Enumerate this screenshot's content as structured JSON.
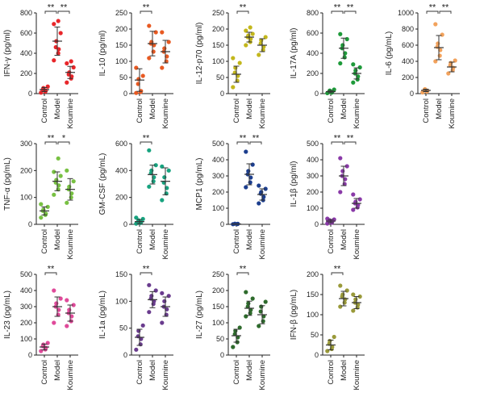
{
  "groups": [
    "Control",
    "Model",
    "Koumine"
  ],
  "colors_meta": {
    "note_free": true
  },
  "chart_data": [
    {
      "type": "scatter",
      "ylabel": "IFN-γ (pg/ml)",
      "ylim": [
        0,
        800
      ],
      "yticks": [
        0,
        200,
        400,
        600,
        800
      ],
      "color": "#e8262a",
      "series": [
        {
          "values": [
            10,
            20,
            30,
            40,
            55,
            70
          ],
          "mean": 40,
          "sd": 20
        },
        {
          "values": [
            330,
            400,
            440,
            460,
            520,
            600,
            690,
            720
          ],
          "mean": 520,
          "sd": 140
        },
        {
          "values": [
            110,
            150,
            170,
            190,
            210,
            260,
            300,
            320
          ],
          "mean": 210,
          "sd": 60
        }
      ],
      "significance": [
        {
          "from": 0,
          "to": 1,
          "label": "**"
        },
        {
          "from": 1,
          "to": 2,
          "label": "**"
        }
      ]
    },
    {
      "type": "scatter",
      "ylabel": "IL-10 (pg/ml)",
      "ylim": [
        0,
        250
      ],
      "yticks": [
        0,
        50,
        100,
        150,
        200,
        250
      ],
      "color": "#e85a22",
      "series": [
        {
          "values": [
            2,
            5,
            8,
            30,
            45,
            55,
            80
          ],
          "mean": 42,
          "sd": 35
        },
        {
          "values": [
            110,
            130,
            150,
            155,
            160,
            190,
            210
          ],
          "mean": 155,
          "sd": 38
        },
        {
          "values": [
            80,
            100,
            115,
            130,
            140,
            160,
            190
          ],
          "mean": 130,
          "sd": 35
        }
      ],
      "significance": [
        {
          "from": 0,
          "to": 1,
          "label": "**"
        }
      ]
    },
    {
      "type": "scatter",
      "ylabel": "IL-12-p70 (pg/ml)",
      "ylim": [
        0,
        250
      ],
      "yticks": [
        0,
        50,
        100,
        150,
        200,
        250
      ],
      "color": "#c3b71c",
      "series": [
        {
          "values": [
            20,
            40,
            55,
            65,
            80,
            95,
            110
          ],
          "mean": 60,
          "sd": 25
        },
        {
          "values": [
            150,
            160,
            170,
            175,
            180,
            185,
            195,
            205
          ],
          "mean": 175,
          "sd": 15
        },
        {
          "values": [
            120,
            135,
            145,
            155,
            165,
            175
          ],
          "mean": 150,
          "sd": 20
        }
      ],
      "significance": [
        {
          "from": 0,
          "to": 1,
          "label": "**"
        }
      ]
    },
    {
      "type": "scatter",
      "ylabel": "IL-17A (pg/ml)",
      "ylim": [
        0,
        800
      ],
      "yticks": [
        0,
        200,
        400,
        600,
        800
      ],
      "color": "#1e9a3a",
      "series": [
        {
          "values": [
            5,
            10,
            15,
            20,
            30,
            40
          ],
          "mean": 20,
          "sd": 12
        },
        {
          "values": [
            300,
            360,
            400,
            450,
            480,
            540,
            590
          ],
          "mean": 450,
          "sd": 100
        },
        {
          "values": [
            110,
            140,
            170,
            200,
            230,
            260,
            290
          ],
          "mean": 200,
          "sd": 55
        }
      ],
      "significance": [
        {
          "from": 0,
          "to": 1,
          "label": "**"
        },
        {
          "from": 1,
          "to": 2,
          "label": "**"
        }
      ]
    },
    {
      "type": "scatter",
      "ylabel": "IL-6 (pg/mL)",
      "ylim": [
        0,
        1000
      ],
      "yticks": [
        0,
        200,
        400,
        600,
        800,
        1000
      ],
      "color": "#f2a25c",
      "series": [
        {
          "values": [
            15,
            25,
            35,
            45,
            55
          ],
          "mean": 40,
          "sd": 15
        },
        {
          "values": [
            400,
            470,
            540,
            580,
            620,
            730,
            860
          ],
          "mean": 570,
          "sd": 150
        },
        {
          "values": [
            250,
            290,
            320,
            350,
            380,
            410
          ],
          "mean": 330,
          "sd": 60
        }
      ],
      "significance": [
        {
          "from": 0,
          "to": 1,
          "label": "**"
        },
        {
          "from": 1,
          "to": 2,
          "label": "**"
        }
      ]
    },
    {
      "type": "scatter",
      "ylabel": "TNF-α (pg/mL)",
      "ylim": [
        0,
        300
      ],
      "yticks": [
        0,
        100,
        200,
        300
      ],
      "color": "#78c142",
      "series": [
        {
          "values": [
            25,
            35,
            40,
            50,
            55,
            65,
            75
          ],
          "mean": 50,
          "sd": 15
        },
        {
          "values": [
            110,
            130,
            145,
            155,
            165,
            180,
            195,
            245
          ],
          "mean": 160,
          "sd": 35
        },
        {
          "values": [
            80,
            100,
            115,
            130,
            140,
            160,
            200
          ],
          "mean": 130,
          "sd": 40
        }
      ],
      "significance": [
        {
          "from": 0,
          "to": 1,
          "label": "**"
        },
        {
          "from": 1,
          "to": 2,
          "label": "*"
        }
      ]
    },
    {
      "type": "scatter",
      "ylabel": "GM-CSF (pg/mL)",
      "ylim": [
        0,
        600
      ],
      "yticks": [
        0,
        200,
        400,
        600
      ],
      "color": "#17a37f",
      "series": [
        {
          "values": [
            5,
            10,
            15,
            20,
            30,
            40,
            50
          ],
          "mean": 20,
          "sd": 15
        },
        {
          "values": [
            280,
            320,
            350,
            380,
            400,
            440,
            550
          ],
          "mean": 370,
          "sd": 70
        },
        {
          "values": [
            180,
            230,
            270,
            310,
            350,
            400,
            430
          ],
          "mean": 320,
          "sd": 100
        }
      ],
      "significance": [
        {
          "from": 0,
          "to": 1,
          "label": "**"
        }
      ]
    },
    {
      "type": "scatter",
      "ylabel": "MCP1 (pg/mL)",
      "ylim": [
        0,
        500
      ],
      "yticks": [
        0,
        100,
        200,
        300,
        400,
        500
      ],
      "color": "#1c3e8e",
      "series": [
        {
          "values": [
            1,
            2,
            3,
            4
          ],
          "mean": 2,
          "sd": 1
        },
        {
          "values": [
            230,
            260,
            290,
            310,
            330,
            370,
            450
          ],
          "mean": 310,
          "sd": 65
        },
        {
          "values": [
            130,
            150,
            170,
            190,
            200,
            220,
            240
          ],
          "mean": 185,
          "sd": 35
        }
      ],
      "significance": [
        {
          "from": 0,
          "to": 1,
          "label": "**"
        },
        {
          "from": 1,
          "to": 2,
          "label": "**"
        }
      ]
    },
    {
      "type": "scatter",
      "ylabel": "IL-1β (pg/ml)",
      "ylim": [
        0,
        500
      ],
      "yticks": [
        0,
        100,
        200,
        300,
        400,
        500
      ],
      "color": "#8a3aa8",
      "series": [
        {
          "values": [
            5,
            10,
            15,
            20,
            25,
            30,
            35
          ],
          "mean": 20,
          "sd": 10
        },
        {
          "values": [
            200,
            250,
            280,
            300,
            330,
            360,
            410
          ],
          "mean": 300,
          "sd": 60
        },
        {
          "values": [
            90,
            105,
            120,
            130,
            140,
            155,
            185
          ],
          "mean": 130,
          "sd": 30
        }
      ],
      "significance": [
        {
          "from": 0,
          "to": 1,
          "label": "**"
        },
        {
          "from": 1,
          "to": 2,
          "label": "**"
        }
      ]
    },
    {
      "type": "scatter",
      "ylabel": "IL-23 (pg/mL)",
      "ylim": [
        0,
        500
      ],
      "yticks": [
        0,
        100,
        200,
        300,
        400,
        500
      ],
      "color": "#e04a9a",
      "series": [
        {
          "values": [
            25,
            35,
            45,
            55,
            65,
            75
          ],
          "mean": 50,
          "sd": 18
        },
        {
          "values": [
            200,
            250,
            280,
            300,
            320,
            350,
            400
          ],
          "mean": 300,
          "sd": 60
        },
        {
          "values": [
            180,
            210,
            240,
            260,
            280,
            310,
            340
          ],
          "mean": 260,
          "sd": 50
        }
      ],
      "significance": [
        {
          "from": 0,
          "to": 1,
          "label": "**"
        }
      ]
    },
    {
      "type": "scatter",
      "ylabel": "IL-1a (pg/mL)",
      "ylim": [
        0,
        150
      ],
      "yticks": [
        0,
        50,
        100,
        150
      ],
      "color": "#6a3c8e",
      "series": [
        {
          "values": [
            10,
            20,
            30,
            35,
            45,
            55
          ],
          "mean": 33,
          "sd": 15
        },
        {
          "values": [
            80,
            95,
            100,
            105,
            110,
            120,
            130
          ],
          "mean": 103,
          "sd": 15
        },
        {
          "values": [
            60,
            75,
            85,
            90,
            100,
            110,
            115
          ],
          "mean": 90,
          "sd": 18
        }
      ],
      "significance": [
        {
          "from": 0,
          "to": 1,
          "label": "**"
        }
      ]
    },
    {
      "type": "scatter",
      "ylabel": "IL-27 (pg/mL)",
      "ylim": [
        0,
        250
      ],
      "yticks": [
        0,
        50,
        100,
        150,
        200,
        250
      ],
      "color": "#2e6b2c",
      "series": [
        {
          "values": [
            25,
            40,
            55,
            65,
            75,
            85
          ],
          "mean": 60,
          "sd": 20
        },
        {
          "values": [
            120,
            130,
            140,
            150,
            160,
            175,
            195
          ],
          "mean": 145,
          "sd": 22
        },
        {
          "values": [
            90,
            105,
            120,
            135,
            150,
            165
          ],
          "mean": 125,
          "sd": 28
        }
      ],
      "significance": [
        {
          "from": 0,
          "to": 1,
          "label": "**"
        }
      ]
    },
    {
      "type": "scatter",
      "ylabel": "IFN-β (pg/mL)",
      "ylim": [
        0,
        200
      ],
      "yticks": [
        0,
        50,
        100,
        150,
        200
      ],
      "color": "#9a9a3a",
      "series": [
        {
          "values": [
            10,
            15,
            20,
            28,
            35,
            45
          ],
          "mean": 25,
          "sd": 12
        },
        {
          "values": [
            120,
            130,
            138,
            145,
            150,
            160,
            172
          ],
          "mean": 140,
          "sd": 18
        },
        {
          "values": [
            110,
            118,
            125,
            130,
            138,
            145,
            150
          ],
          "mean": 130,
          "sd": 15
        }
      ],
      "significance": [
        {
          "from": 0,
          "to": 1,
          "label": "**"
        }
      ]
    }
  ]
}
